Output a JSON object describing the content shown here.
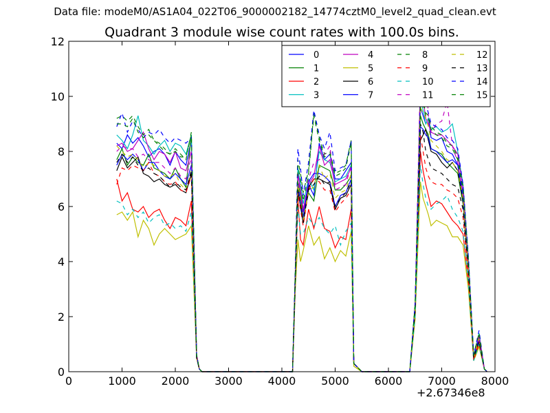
{
  "suptitle": "Data file: modeM0/AS1A04_022T06_9000002182_14774cztM0_level2_quad_clean.evt",
  "chart_data": {
    "type": "line",
    "title": "Quadrant 3 module wise count rates with 100.0s bins.",
    "xlabel": "",
    "ylabel": "",
    "x_offset_label": "+2.67346e8",
    "xlim": [
      0,
      8000
    ],
    "ylim": [
      0,
      12
    ],
    "xticks": [
      "0",
      "1000",
      "2000",
      "3000",
      "4000",
      "5000",
      "6000",
      "7000",
      "8000"
    ],
    "yticks": [
      "0",
      "2",
      "4",
      "6",
      "8",
      "10",
      "12"
    ],
    "grid": false,
    "legend": {
      "placement": "top-right",
      "columns": 4
    },
    "x": [
      900,
      1000,
      1100,
      1200,
      1300,
      1400,
      1500,
      1600,
      1700,
      1800,
      1900,
      2000,
      2100,
      2200,
      2300,
      2400,
      2450,
      2500,
      4200,
      4250,
      4300,
      4350,
      4400,
      4500,
      4600,
      4700,
      4800,
      4900,
      5000,
      5100,
      5200,
      5300,
      5350,
      5500,
      6400,
      6500,
      6600,
      6650,
      6700,
      6750,
      6800,
      6900,
      7000,
      7100,
      7200,
      7300,
      7400,
      7500,
      7600,
      7700,
      7800,
      7850
    ],
    "series": [
      {
        "name": "0",
        "color": "#0000ff",
        "style": "solid",
        "values": [
          8.3,
          8.1,
          8.6,
          8.3,
          8.5,
          8.2,
          7.8,
          8.0,
          8.1,
          7.9,
          7.5,
          8.0,
          7.7,
          7.5,
          8.4,
          0.6,
          0.1,
          0,
          0,
          3.5,
          7.3,
          6.8,
          5.8,
          6.8,
          6.4,
          8.3,
          7.7,
          7.9,
          7.0,
          7.0,
          7.3,
          7.6,
          0.3,
          0,
          0,
          2.4,
          9.6,
          9.3,
          9.0,
          9.2,
          8.5,
          8.4,
          8.5,
          8.0,
          7.9,
          7.5,
          6.5,
          4.0,
          0.5,
          1.3,
          0.1,
          0
        ]
      },
      {
        "name": "1",
        "color": "#008000",
        "style": "solid",
        "values": [
          7.7,
          8.1,
          7.5,
          7.8,
          7.6,
          7.5,
          7.9,
          7.4,
          7.3,
          7.2,
          7.0,
          7.4,
          7.0,
          6.7,
          8.6,
          0.6,
          0.1,
          0,
          0,
          3.4,
          6.9,
          6.4,
          5.6,
          6.5,
          6.2,
          7.5,
          7.4,
          7.3,
          6.6,
          6.6,
          6.8,
          7.1,
          0.3,
          0,
          0,
          2.3,
          9.3,
          9.0,
          8.8,
          8.6,
          8.1,
          8.0,
          7.9,
          7.6,
          7.4,
          7.2,
          6.1,
          3.7,
          0.5,
          1.2,
          0.1,
          0
        ]
      },
      {
        "name": "2",
        "color": "#ff0000",
        "style": "solid",
        "values": [
          7.0,
          6.2,
          6.5,
          5.9,
          5.8,
          6.0,
          5.6,
          5.8,
          5.9,
          5.5,
          5.2,
          5.6,
          5.5,
          5.3,
          6.2,
          0.5,
          0.1,
          0,
          0,
          3.0,
          6.3,
          4.8,
          4.6,
          5.9,
          5.2,
          6.0,
          5.2,
          5.1,
          4.5,
          4.9,
          4.8,
          5.9,
          0.3,
          0,
          0,
          2.0,
          8.0,
          7.3,
          6.8,
          6.4,
          6.0,
          6.2,
          6.1,
          5.8,
          5.5,
          5.3,
          5.0,
          3.2,
          0.4,
          1.0,
          0.1,
          0
        ]
      },
      {
        "name": "3",
        "color": "#00bfbf",
        "style": "solid",
        "values": [
          8.6,
          8.4,
          8.1,
          8.6,
          9.3,
          8.4,
          8.2,
          7.9,
          8.2,
          8.4,
          8.0,
          8.3,
          8.2,
          7.9,
          8.6,
          0.6,
          0.1,
          0,
          0,
          3.5,
          7.4,
          6.8,
          6.1,
          7.0,
          6.6,
          8.0,
          7.7,
          7.6,
          6.9,
          7.0,
          7.1,
          7.5,
          0.3,
          0,
          0,
          2.4,
          9.9,
          9.5,
          9.0,
          9.2,
          8.8,
          8.9,
          8.7,
          8.8,
          9.0,
          8.0,
          6.8,
          4.1,
          0.6,
          1.4,
          0.1,
          0
        ]
      },
      {
        "name": "4",
        "color": "#bf00bf",
        "style": "solid",
        "values": [
          8.2,
          8.3,
          8.0,
          8.1,
          8.4,
          8.7,
          8.1,
          7.7,
          8.0,
          7.9,
          7.6,
          8.0,
          7.4,
          7.3,
          8.0,
          0.6,
          0.1,
          0,
          0,
          3.4,
          7.2,
          6.6,
          5.9,
          6.8,
          7.1,
          8.2,
          7.5,
          7.7,
          6.8,
          6.9,
          7.0,
          7.4,
          0.3,
          0,
          0,
          2.3,
          10.5,
          9.9,
          9.2,
          9.0,
          8.7,
          8.6,
          8.6,
          8.4,
          8.2,
          7.9,
          6.7,
          4.0,
          0.5,
          1.3,
          0.1,
          0
        ]
      },
      {
        "name": "5",
        "color": "#bfbf00",
        "style": "solid",
        "values": [
          5.7,
          5.8,
          5.5,
          5.8,
          4.9,
          5.5,
          5.2,
          4.6,
          5.0,
          5.2,
          5.0,
          4.8,
          4.9,
          5.0,
          5.3,
          0.5,
          0.1,
          0,
          0,
          2.9,
          4.8,
          4.0,
          4.4,
          5.3,
          4.6,
          4.9,
          4.1,
          4.5,
          4.0,
          4.4,
          4.2,
          5.1,
          0.2,
          0,
          0,
          1.9,
          6.9,
          6.3,
          6.0,
          5.7,
          5.3,
          5.5,
          5.4,
          5.3,
          4.9,
          4.9,
          4.6,
          3.0,
          0.4,
          0.9,
          0.1,
          0
        ]
      },
      {
        "name": "6",
        "color": "#000000",
        "style": "solid",
        "values": [
          7.3,
          7.8,
          7.4,
          7.6,
          7.8,
          7.2,
          7.1,
          6.9,
          7.0,
          6.8,
          6.7,
          6.8,
          6.6,
          6.5,
          7.2,
          0.5,
          0.1,
          0,
          0,
          3.3,
          6.6,
          6.0,
          5.4,
          6.7,
          7.0,
          7.0,
          6.9,
          6.8,
          5.9,
          6.3,
          6.4,
          6.8,
          0.3,
          0,
          0,
          2.2,
          8.4,
          8.6,
          8.8,
          8.4,
          8.0,
          7.9,
          7.6,
          7.4,
          7.6,
          7.3,
          6.2,
          3.7,
          0.5,
          1.1,
          0.1,
          0
        ]
      },
      {
        "name": "7",
        "color": "#0000ff",
        "style": "solid",
        "values": [
          7.5,
          7.9,
          7.7,
          7.9,
          7.7,
          7.3,
          7.6,
          7.6,
          7.3,
          7.1,
          7.0,
          7.2,
          7.0,
          6.8,
          7.5,
          0.5,
          0.1,
          0,
          0,
          3.3,
          6.8,
          6.1,
          5.6,
          6.9,
          7.2,
          7.2,
          7.1,
          6.9,
          6.0,
          6.4,
          6.5,
          7.0,
          0.3,
          0,
          0,
          2.3,
          8.9,
          8.8,
          8.6,
          8.5,
          8.1,
          8.0,
          7.8,
          7.6,
          7.7,
          7.5,
          6.3,
          3.8,
          0.5,
          1.2,
          0.1,
          0
        ]
      },
      {
        "name": "8",
        "color": "#008000",
        "style": "dashed",
        "values": [
          9.2,
          9.3,
          9.1,
          9.3,
          8.9,
          8.6,
          8.8,
          8.4,
          8.3,
          8.1,
          7.9,
          8.1,
          7.9,
          7.7,
          8.7,
          0.6,
          0.1,
          0,
          0,
          3.6,
          7.7,
          7.2,
          6.5,
          7.3,
          9.4,
          8.5,
          7.9,
          8.0,
          7.2,
          7.3,
          7.5,
          8.4,
          0.3,
          0,
          0,
          2.5,
          9.8,
          9.8,
          9.4,
          9.3,
          8.9,
          8.7,
          8.6,
          8.3,
          8.2,
          7.8,
          6.7,
          4.1,
          0.6,
          1.4,
          0.1,
          0
        ]
      },
      {
        "name": "9",
        "color": "#ff0000",
        "style": "dashed",
        "values": [
          6.8,
          7.4,
          7.3,
          7.5,
          7.4,
          7.3,
          7.6,
          7.2,
          7.1,
          6.9,
          6.8,
          6.9,
          6.6,
          6.5,
          7.1,
          0.5,
          0.1,
          0,
          0,
          3.2,
          6.5,
          5.9,
          5.3,
          6.6,
          7.0,
          6.9,
          6.6,
          6.6,
          5.8,
          6.1,
          6.3,
          6.6,
          0.3,
          0,
          0,
          2.2,
          8.6,
          8.0,
          7.4,
          7.1,
          6.9,
          6.8,
          6.8,
          6.6,
          6.5,
          6.3,
          5.6,
          3.5,
          0.4,
          1.1,
          0.1,
          0
        ]
      },
      {
        "name": "10",
        "color": "#00bfbf",
        "style": "dashed",
        "values": [
          6.2,
          6.1,
          5.7,
          5.9,
          5.6,
          5.8,
          5.4,
          5.6,
          5.7,
          5.3,
          5.4,
          5.2,
          5.3,
          5.1,
          5.8,
          0.5,
          0.1,
          0,
          0,
          3.0,
          6.0,
          5.0,
          5.0,
          5.6,
          5.3,
          5.6,
          5.2,
          5.0,
          5.3,
          4.6,
          5.1,
          5.4,
          0.3,
          0,
          0,
          2.0,
          7.5,
          6.8,
          6.3,
          6.0,
          5.9,
          6.1,
          6.2,
          6.4,
          5.9,
          5.6,
          5.1,
          3.2,
          0.4,
          1.0,
          0.1,
          0
        ]
      },
      {
        "name": "11",
        "color": "#bf00bf",
        "style": "dashed",
        "values": [
          8.0,
          8.2,
          8.1,
          8.1,
          7.8,
          7.9,
          7.7,
          7.6,
          7.6,
          7.4,
          7.2,
          7.4,
          7.1,
          7.0,
          7.8,
          0.6,
          0.1,
          0,
          0,
          3.4,
          7.0,
          6.5,
          5.8,
          7.0,
          7.6,
          7.7,
          7.9,
          8.2,
          6.6,
          6.7,
          6.8,
          7.5,
          0.3,
          0,
          0,
          2.4,
          10.8,
          10.2,
          11.0,
          9.3,
          8.7,
          9.0,
          9.1,
          9.8,
          8.2,
          7.6,
          6.4,
          3.9,
          0.5,
          1.3,
          0.1,
          0
        ]
      },
      {
        "name": "12",
        "color": "#bfbf00",
        "style": "dashed",
        "values": [
          8.2,
          8.0,
          7.8,
          7.9,
          7.7,
          7.4,
          7.6,
          7.5,
          7.3,
          7.1,
          7.1,
          7.2,
          6.8,
          6.6,
          7.3,
          0.5,
          0.1,
          0,
          0,
          3.3,
          6.8,
          6.2,
          5.5,
          6.6,
          6.7,
          7.5,
          7.0,
          7.2,
          6.3,
          6.5,
          6.6,
          7.2,
          0.3,
          0,
          0,
          2.3,
          9.6,
          9.4,
          9.2,
          8.9,
          8.4,
          8.2,
          8.0,
          7.7,
          7.6,
          7.3,
          6.3,
          3.8,
          0.5,
          1.2,
          0.1,
          0
        ]
      },
      {
        "name": "13",
        "color": "#000000",
        "style": "dashed",
        "values": [
          7.6,
          7.9,
          7.6,
          7.8,
          7.5,
          7.3,
          7.4,
          7.2,
          7.1,
          6.9,
          6.7,
          6.9,
          6.7,
          6.6,
          7.3,
          0.5,
          0.1,
          0,
          0,
          3.2,
          6.6,
          6.1,
          5.4,
          6.6,
          6.8,
          7.1,
          6.8,
          6.9,
          6.0,
          6.3,
          6.5,
          6.9,
          0.3,
          0,
          0,
          2.2,
          9.0,
          8.7,
          8.0,
          7.7,
          7.4,
          7.3,
          7.2,
          7.0,
          6.8,
          6.7,
          5.9,
          3.6,
          0.5,
          1.1,
          0.1,
          0
        ]
      },
      {
        "name": "14",
        "color": "#0000ff",
        "style": "dashed",
        "values": [
          8.9,
          9.4,
          8.7,
          9.1,
          8.8,
          8.5,
          8.7,
          8.6,
          8.8,
          8.5,
          8.3,
          8.5,
          8.4,
          8.3,
          8.5,
          0.6,
          0.1,
          0,
          0,
          3.6,
          8.1,
          7.4,
          6.4,
          7.6,
          9.5,
          8.6,
          8.1,
          8.7,
          7.3,
          7.4,
          7.5,
          8.4,
          0.3,
          0,
          0,
          2.5,
          10.0,
          9.6,
          9.7,
          9.4,
          9.0,
          8.9,
          8.8,
          8.5,
          8.4,
          8.1,
          6.8,
          4.2,
          0.6,
          1.5,
          0.1,
          0
        ]
      },
      {
        "name": "15",
        "color": "#008000",
        "style": "dashed",
        "values": [
          9.0,
          9.0,
          8.9,
          9.2,
          8.7,
          8.5,
          8.6,
          8.4,
          8.2,
          8.0,
          7.9,
          8.0,
          7.8,
          7.8,
          8.6,
          0.6,
          0.1,
          0,
          0,
          3.5,
          7.5,
          7.0,
          6.2,
          7.2,
          9.3,
          8.4,
          7.8,
          7.9,
          7.1,
          7.2,
          7.4,
          8.3,
          0.3,
          0,
          0,
          2.4,
          9.7,
          9.7,
          9.3,
          9.2,
          8.8,
          8.6,
          8.5,
          8.2,
          8.1,
          7.7,
          6.6,
          4.0,
          0.6,
          1.4,
          0.1,
          0
        ]
      }
    ]
  }
}
